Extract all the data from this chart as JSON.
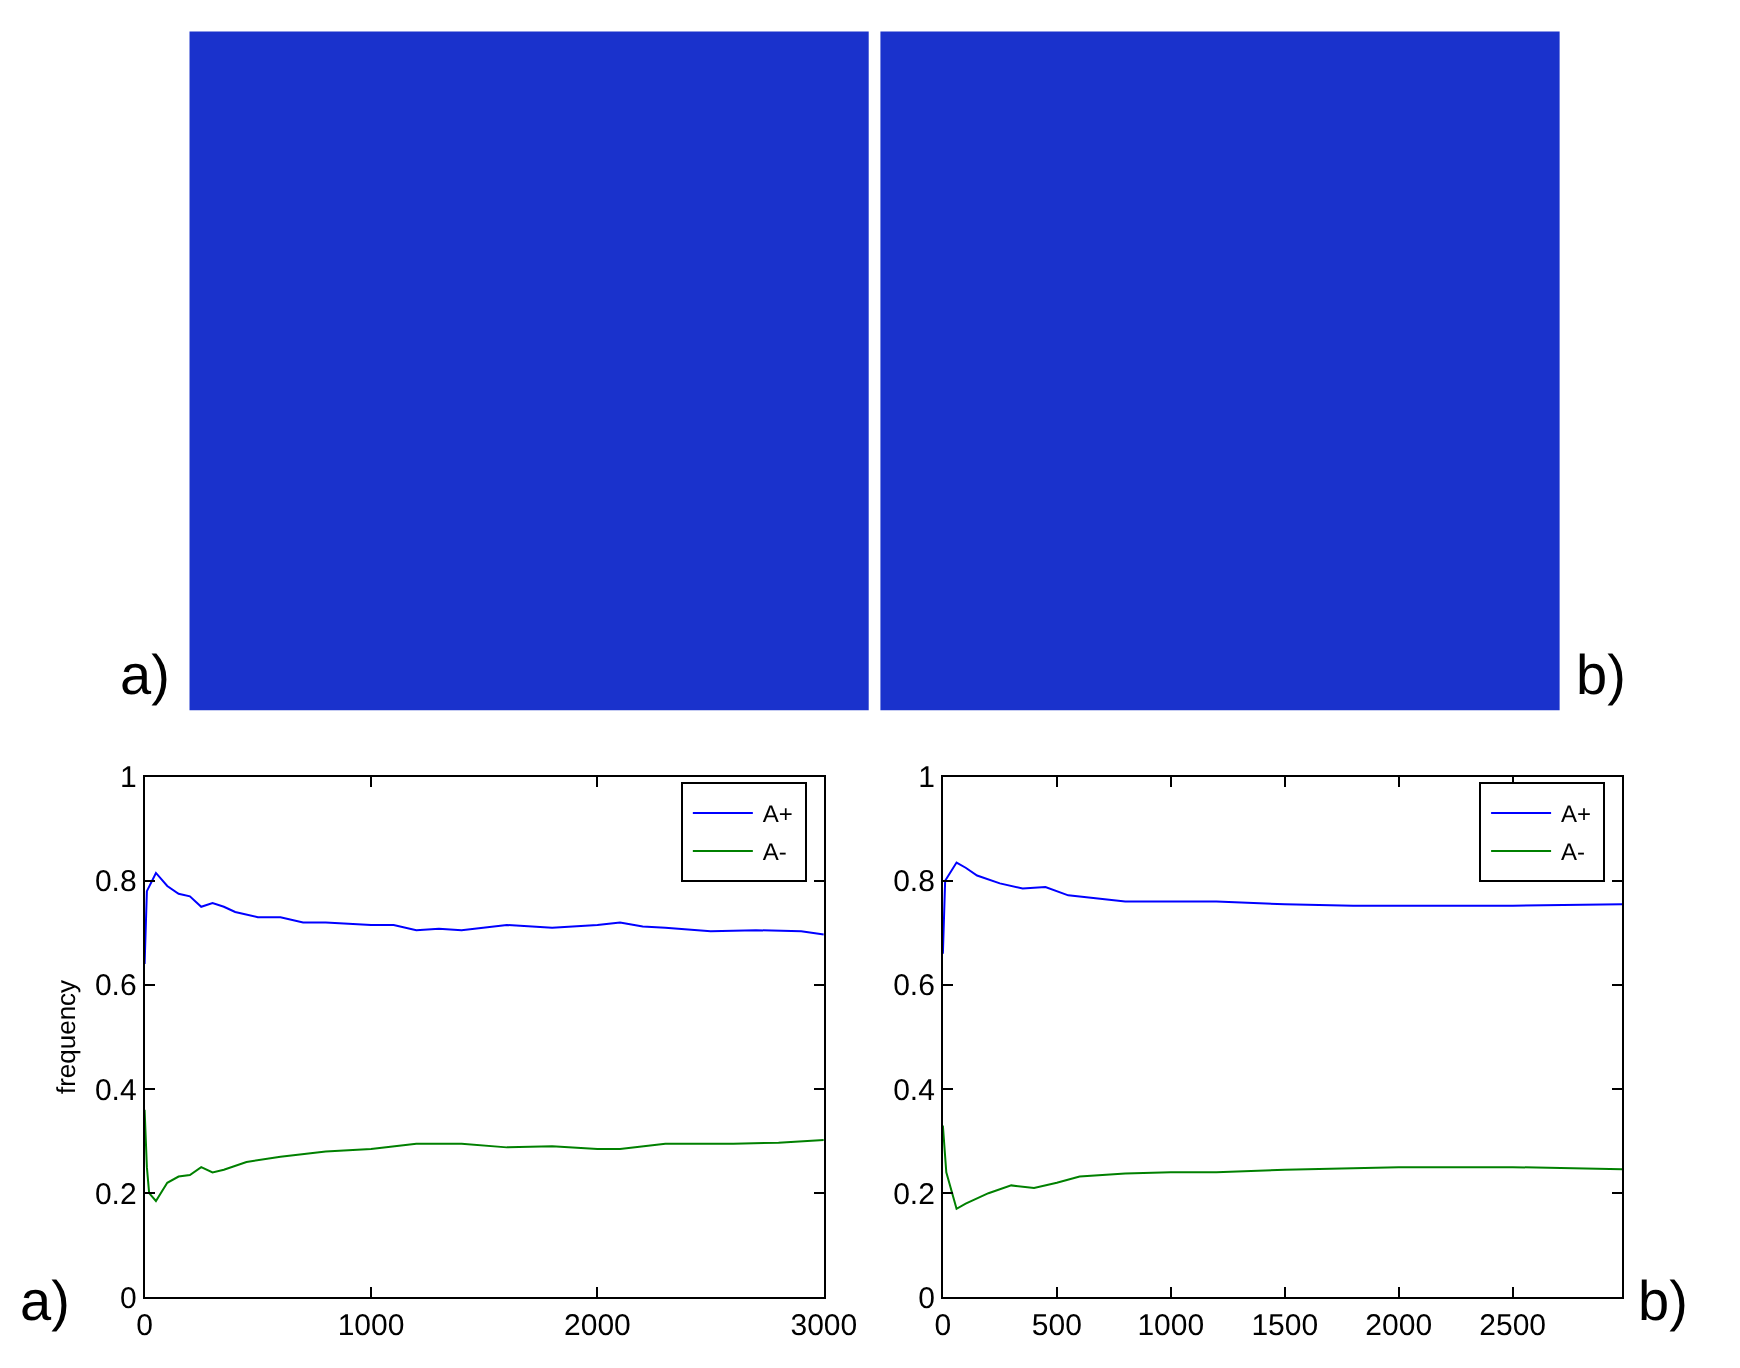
{
  "chart_data": [
    {
      "type": "other",
      "annotations": [
        "a)"
      ]
    },
    {
      "type": "other",
      "annotations": [
        "b)"
      ]
    },
    {
      "type": "line",
      "ylabel": "frequency",
      "xlim": [
        0,
        3000
      ],
      "xticks": [
        0,
        1000,
        2000,
        3000
      ],
      "ylim": [
        0,
        1
      ],
      "yticks": [
        0,
        0.2,
        0.4,
        0.6,
        0.8,
        1
      ],
      "legend": "top right",
      "marker": "none",
      "line_style": "solid",
      "annotations": [
        "a)"
      ],
      "series": [
        {
          "name": "A+",
          "color": "#0000ff",
          "x": [
            0,
            10,
            50,
            100,
            150,
            200,
            250,
            300,
            350,
            400,
            500,
            600,
            700,
            800,
            1000,
            1100,
            1200,
            1300,
            1400,
            1600,
            1800,
            2000,
            2100,
            2200,
            2300,
            2500,
            2700,
            2900,
            3000
          ],
          "values": [
            0.64,
            0.78,
            0.815,
            0.79,
            0.775,
            0.77,
            0.75,
            0.757,
            0.75,
            0.74,
            0.73,
            0.73,
            0.72,
            0.72,
            0.715,
            0.715,
            0.705,
            0.708,
            0.705,
            0.715,
            0.71,
            0.715,
            0.72,
            0.712,
            0.71,
            0.703,
            0.705,
            0.703,
            0.697
          ]
        },
        {
          "name": "A-",
          "color": "#008000",
          "x": [
            0,
            10,
            20,
            50,
            100,
            150,
            200,
            250,
            300,
            350,
            450,
            600,
            800,
            1000,
            1200,
            1400,
            1600,
            1800,
            2000,
            2100,
            2300,
            2600,
            2800,
            3000
          ],
          "values": [
            0.36,
            0.25,
            0.2,
            0.185,
            0.22,
            0.232,
            0.235,
            0.25,
            0.24,
            0.245,
            0.26,
            0.27,
            0.28,
            0.285,
            0.295,
            0.295,
            0.288,
            0.29,
            0.285,
            0.285,
            0.295,
            0.295,
            0.297,
            0.302
          ]
        }
      ]
    },
    {
      "type": "line",
      "xlim": [
        0,
        2980
      ],
      "xticks": [
        0,
        500,
        1000,
        1500,
        2000,
        2500
      ],
      "ylim": [
        0,
        1
      ],
      "yticks": [
        0,
        0.2,
        0.4,
        0.6,
        0.8,
        1
      ],
      "legend": "top right",
      "marker": "none",
      "line_style": "solid",
      "annotations": [
        "b)"
      ],
      "series": [
        {
          "name": "A+",
          "color": "#0000ff",
          "x": [
            0,
            10,
            60,
            100,
            150,
            250,
            350,
            450,
            550,
            700,
            800,
            1000,
            1200,
            1500,
            1800,
            2100,
            2500,
            2980
          ],
          "values": [
            0.66,
            0.8,
            0.835,
            0.825,
            0.81,
            0.795,
            0.785,
            0.788,
            0.772,
            0.765,
            0.76,
            0.76,
            0.76,
            0.755,
            0.752,
            0.752,
            0.752,
            0.755
          ]
        },
        {
          "name": "A-",
          "color": "#008000",
          "x": [
            0,
            15,
            60,
            100,
            200,
            300,
            400,
            500,
            600,
            800,
            1000,
            1200,
            1500,
            2000,
            2500,
            2980
          ],
          "values": [
            0.33,
            0.24,
            0.17,
            0.18,
            0.2,
            0.215,
            0.21,
            0.22,
            0.232,
            0.238,
            0.24,
            0.24,
            0.245,
            0.25,
            0.25,
            0.246
          ]
        }
      ]
    }
  ]
}
